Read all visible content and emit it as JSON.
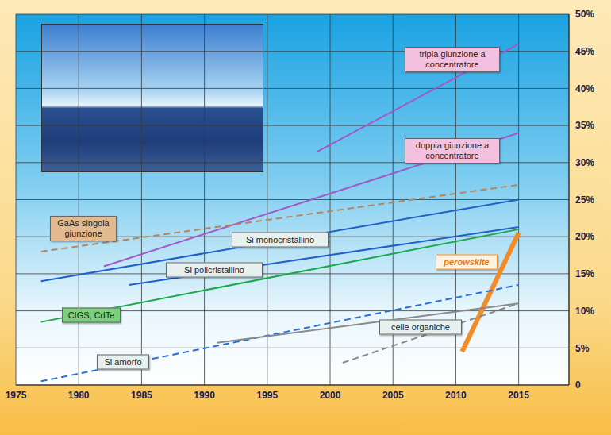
{
  "chart_data": {
    "type": "line",
    "xlim": [
      1975,
      2019
    ],
    "xticks": [
      1975,
      1980,
      1985,
      1990,
      1995,
      2000,
      2005,
      2010,
      2015
    ],
    "ylim": [
      0,
      50
    ],
    "yticks": [
      0,
      {
        "value": 5,
        "label": "5%"
      },
      {
        "value": 10,
        "label": "10%"
      },
      {
        "value": 15,
        "label": "15%"
      },
      {
        "value": 20,
        "label": "20%"
      },
      {
        "value": 25,
        "label": "25%"
      },
      {
        "value": 30,
        "label": "30%"
      },
      {
        "value": 35,
        "label": "35%"
      },
      {
        "value": 40,
        "label": "40%"
      },
      {
        "value": 45,
        "label": "45%"
      },
      {
        "value": 50,
        "label": "50%"
      }
    ],
    "grid": true,
    "series": [
      {
        "name": "tripla giunzione a concentratore",
        "color": "#a05ac8",
        "line_style": "solid",
        "x": [
          1999,
          2015
        ],
        "values": [
          31.5,
          46
        ]
      },
      {
        "name": "doppia giunzione a concentratore",
        "color": "#a05ac8",
        "line_style": "solid",
        "x": [
          1982,
          2015
        ],
        "values": [
          16,
          34
        ]
      },
      {
        "name": "GaAs singola giunzione",
        "color": "#b8865a",
        "line_style": "dashed",
        "x": [
          1977,
          2015
        ],
        "values": [
          18,
          27
        ]
      },
      {
        "name": "Si monocristallino",
        "color": "#2060c8",
        "line_style": "solid",
        "x": [
          1977,
          2015
        ],
        "values": [
          14,
          25
        ]
      },
      {
        "name": "Si policristallino",
        "color": "#2060c8",
        "line_style": "solid",
        "x": [
          1984,
          2015
        ],
        "values": [
          13.5,
          21.3
        ]
      },
      {
        "name": "CIGS, CdTe",
        "color": "#1aa84a",
        "line_style": "solid",
        "x": [
          1977,
          2015
        ],
        "values": [
          8.5,
          21
        ]
      },
      {
        "name": "perowskite",
        "color": "#f28c28",
        "line_style": "bold",
        "x": [
          2010.5,
          2015
        ],
        "values": [
          4.5,
          20.5
        ]
      },
      {
        "name": "Si amorfo",
        "color": "#2a6fd6",
        "line_style": "dashed",
        "x": [
          1977,
          2015
        ],
        "values": [
          0.5,
          13.5
        ]
      },
      {
        "name": "celle organiche",
        "color": "#8a8a8a",
        "line_style": "dashed",
        "x": [
          2001,
          2015
        ],
        "values": [
          3,
          11
        ]
      },
      {
        "color": "#8a8a8a",
        "line_style": "solid",
        "x": [
          1991,
          2015
        ],
        "values": [
          5.7,
          11
        ]
      }
    ]
  }
}
